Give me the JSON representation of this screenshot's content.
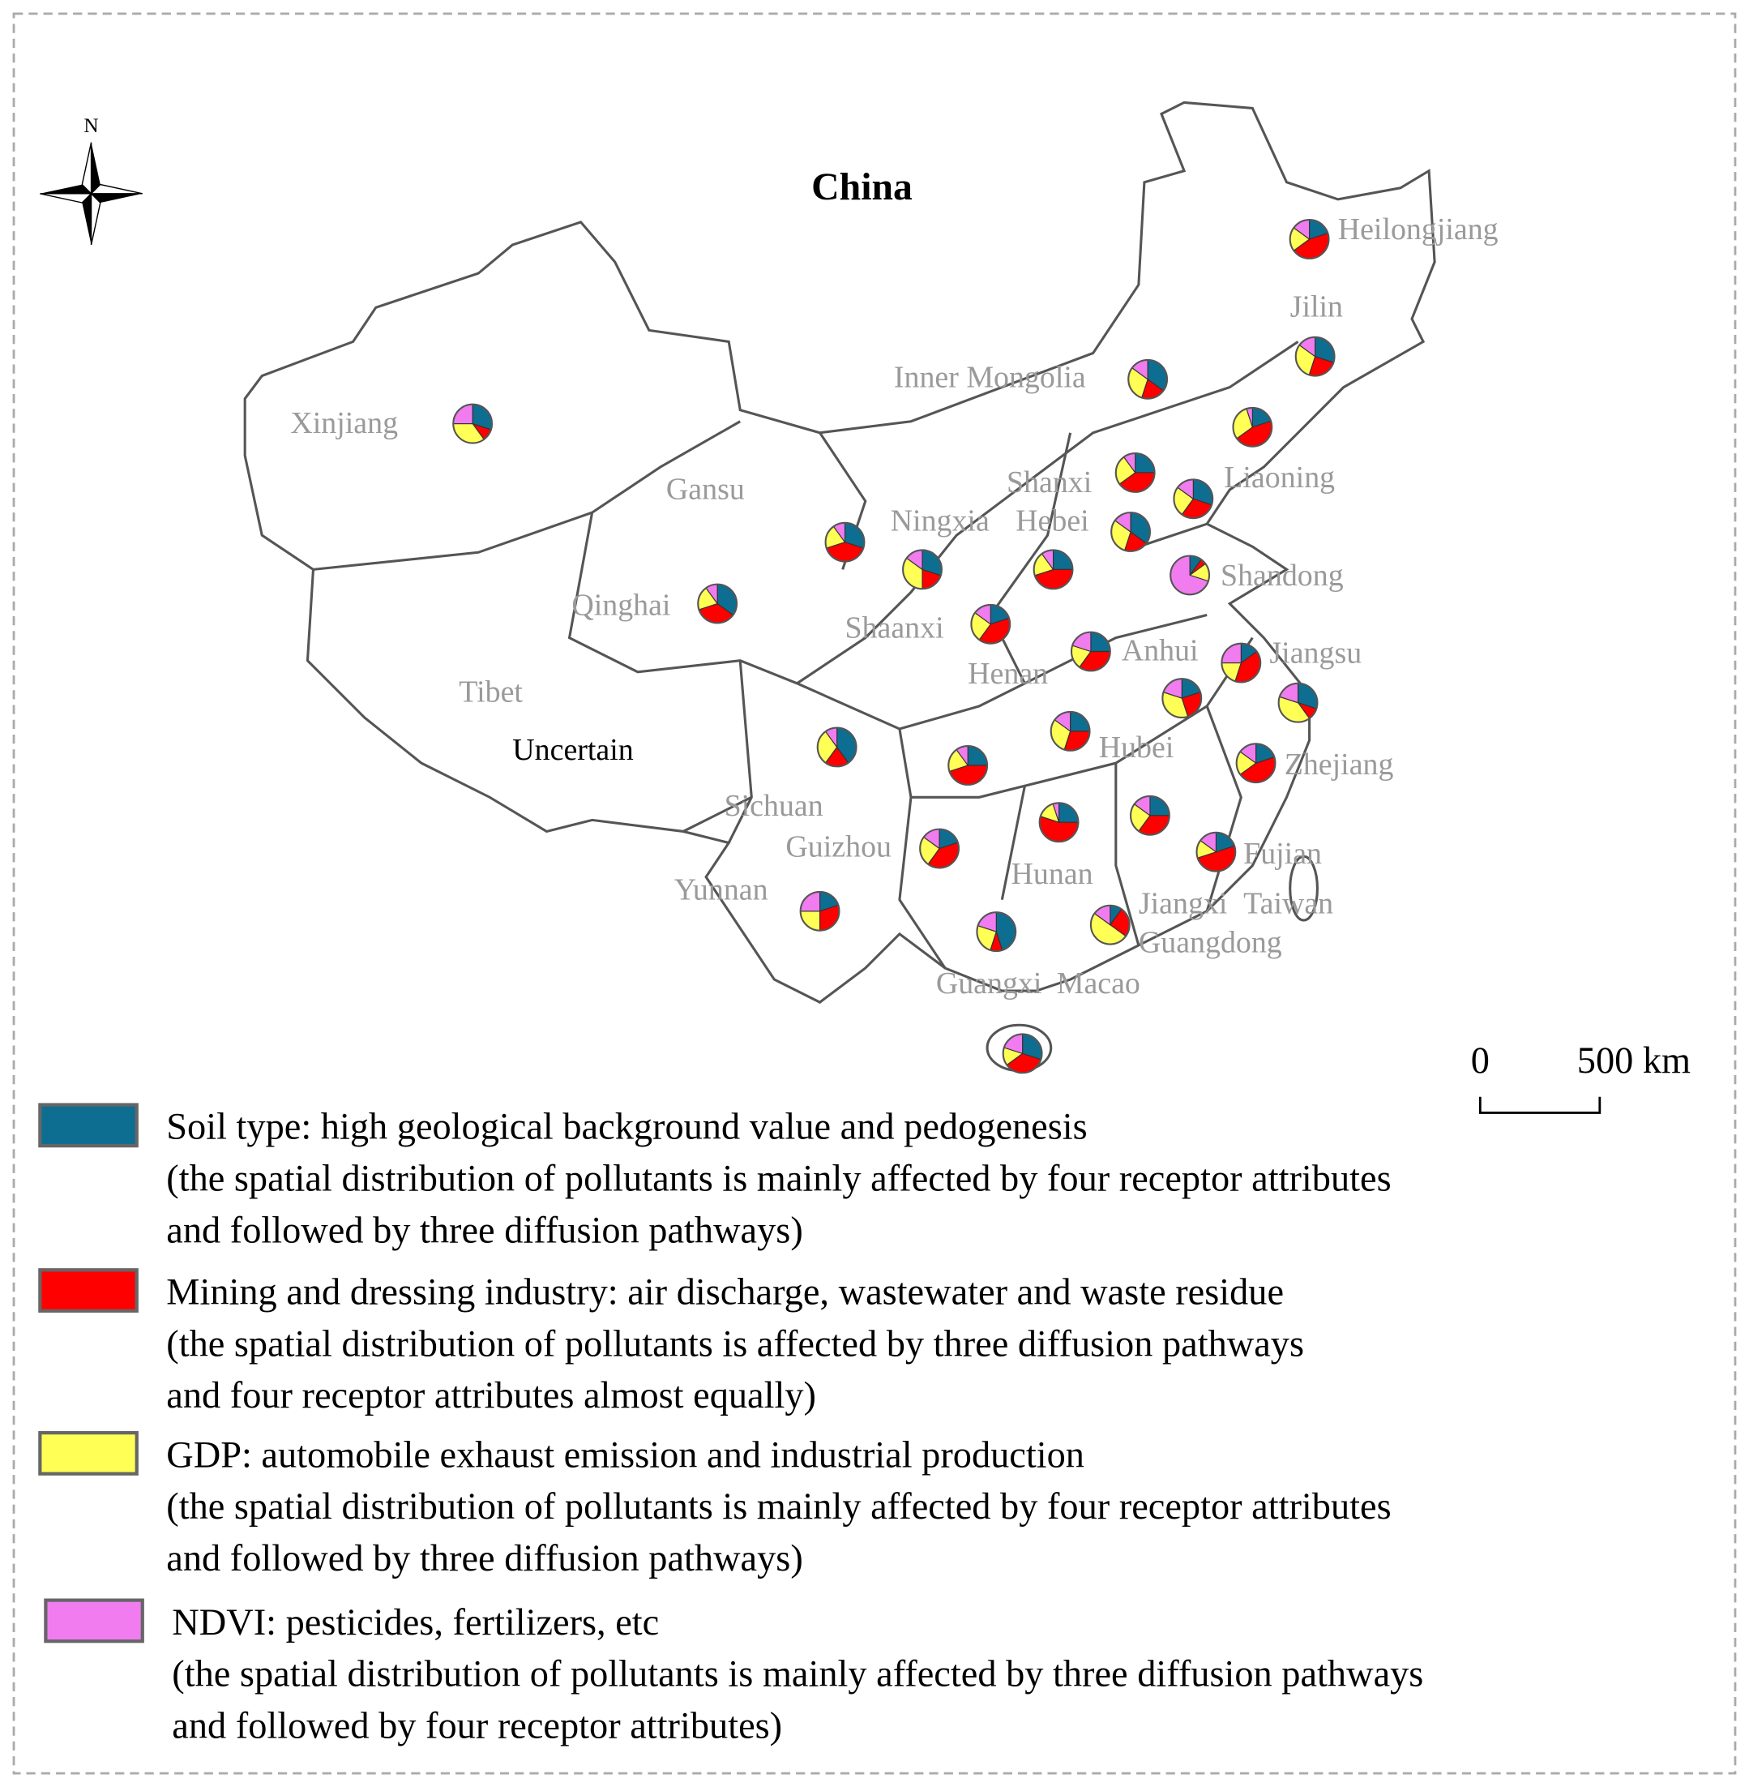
{
  "title": "China",
  "north": "N",
  "scale_bar": {
    "start": "0",
    "end": "500 km"
  },
  "labels": [
    "Heilongjiang",
    "Jilin",
    "Inner Mongolia",
    "Liaoning",
    "Xinjiang",
    "Gansu",
    "Shanxi",
    "Ningxia",
    "Hebei",
    "Shandong",
    "Qinghai",
    "Shaanxi",
    "Henan",
    "Anhui",
    "Jiangsu",
    "Tibet",
    "Sichuan",
    "Hubei",
    "Zhejiang",
    "Guizhou",
    "Hunan",
    "Fujian",
    "Yunnan",
    "Jiangxi",
    "Taiwan",
    "Guangdong",
    "Guangxi",
    "Macao"
  ],
  "uncertain": "Uncertain",
  "pies": [
    [
      20,
      45,
      20,
      15
    ],
    [
      30,
      25,
      30,
      15
    ],
    [
      35,
      20,
      30,
      15
    ],
    [
      20,
      45,
      30,
      5
    ],
    [
      30,
      10,
      35,
      25
    ],
    [
      25,
      40,
      25,
      10
    ],
    [
      30,
      30,
      25,
      15
    ],
    [
      35,
      20,
      30,
      15
    ],
    [
      10,
      5,
      15,
      70
    ],
    [
      25,
      45,
      20,
      10
    ],
    [
      30,
      40,
      20,
      10
    ],
    [
      30,
      20,
      35,
      15
    ],
    [
      35,
      35,
      20,
      10
    ],
    [
      20,
      40,
      25,
      15
    ],
    [
      25,
      35,
      20,
      20
    ],
    [
      15,
      40,
      20,
      25
    ],
    [
      20,
      25,
      35,
      20
    ],
    [
      30,
      10,
      40,
      20
    ],
    [
      40,
      20,
      30,
      10
    ],
    [
      25,
      45,
      20,
      10
    ],
    [
      25,
      30,
      30,
      15
    ],
    [
      20,
      45,
      20,
      15
    ],
    [
      25,
      55,
      15,
      5
    ],
    [
      25,
      35,
      25,
      15
    ],
    [
      20,
      50,
      15,
      15
    ],
    [
      20,
      40,
      25,
      15
    ],
    [
      20,
      30,
      25,
      25
    ],
    [
      45,
      10,
      25,
      20
    ],
    [
      10,
      25,
      50,
      15
    ],
    [
      30,
      35,
      15,
      20
    ],
    [
      15,
      20,
      35,
      30
    ]
  ],
  "legend": [
    {
      "color": "#0e6e91",
      "lines": [
        "Soil type: high geological background value and pedogenesis",
        "(the spatial distribution of pollutants is mainly affected by four receptor attributes",
        "and followed by three diffusion pathways)"
      ]
    },
    {
      "color": "#ff0000",
      "lines": [
        "Mining and dressing industry: air discharge, wastewater and waste residue",
        "(the spatial distribution of pollutants is affected by three diffusion pathways",
        "and four receptor attributes almost equally)"
      ]
    },
    {
      "color": "#ffff55",
      "lines": [
        "GDP: automobile exhaust emission and industrial production",
        "(the spatial distribution of pollutants is mainly affected by four receptor attributes",
        "and followed by three diffusion pathways)"
      ]
    },
    {
      "color": "#f07cf0",
      "lines": [
        "NDVI: pesticides, fertilizers, etc",
        "(the spatial distribution of pollutants is mainly affected by three diffusion pathways",
        "and followed by four receptor attributes)"
      ]
    }
  ]
}
